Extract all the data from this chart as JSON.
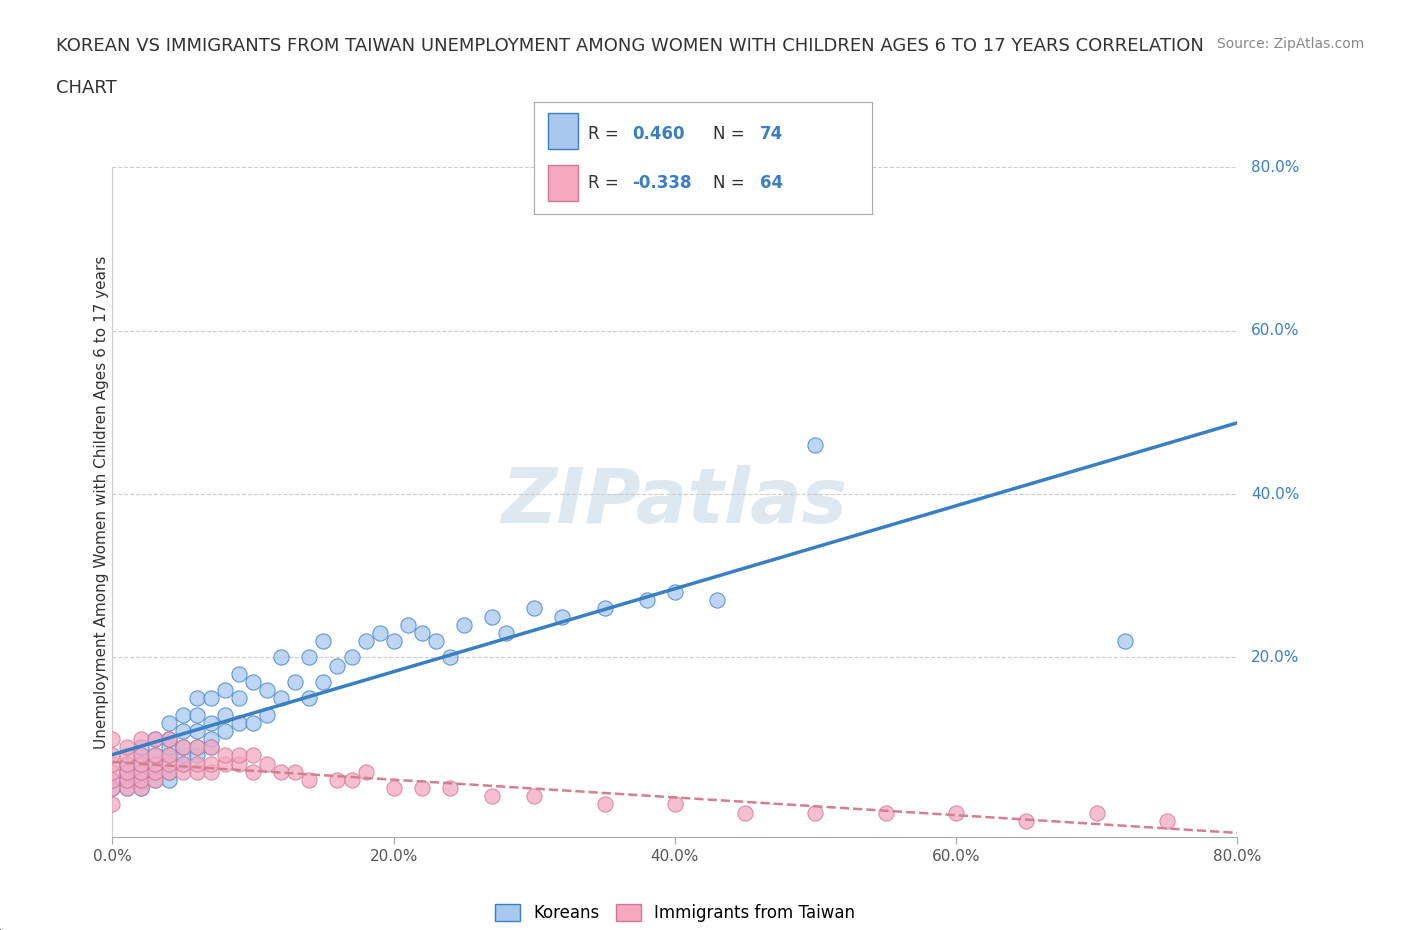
{
  "title_line1": "KOREAN VS IMMIGRANTS FROM TAIWAN UNEMPLOYMENT AMONG WOMEN WITH CHILDREN AGES 6 TO 17 YEARS CORRELATION",
  "title_line2": "CHART",
  "source": "Source: ZipAtlas.com",
  "ylabel": "Unemployment Among Women with Children Ages 6 to 17 years",
  "xlim": [
    0.0,
    0.8
  ],
  "ylim": [
    -0.02,
    0.8
  ],
  "xticks": [
    0.0,
    0.2,
    0.4,
    0.6,
    0.8
  ],
  "yticks": [
    0.0,
    0.2,
    0.4,
    0.6,
    0.8
  ],
  "xticklabels": [
    "0.0%",
    "20.0%",
    "40.0%",
    "60.0%",
    "80.0%"
  ],
  "yticklabels": [
    "20.0%",
    "40.0%",
    "60.0%",
    "80.0%"
  ],
  "korean_R": 0.46,
  "korean_N": 74,
  "taiwan_R": -0.338,
  "taiwan_N": 64,
  "korean_color": "#a8c8f0",
  "taiwan_color": "#f5a8c0",
  "korean_line_color": "#3a7fc1",
  "taiwan_line_color": "#d08090",
  "background_color": "#ffffff",
  "watermark_color": "#dde8f0",
  "grid_color": "#cccccc",
  "korean_x": [
    0.0,
    0.0,
    0.01,
    0.01,
    0.01,
    0.01,
    0.02,
    0.02,
    0.02,
    0.02,
    0.02,
    0.02,
    0.03,
    0.03,
    0.03,
    0.03,
    0.03,
    0.04,
    0.04,
    0.04,
    0.04,
    0.04,
    0.04,
    0.05,
    0.05,
    0.05,
    0.05,
    0.05,
    0.06,
    0.06,
    0.06,
    0.06,
    0.06,
    0.07,
    0.07,
    0.07,
    0.07,
    0.08,
    0.08,
    0.08,
    0.09,
    0.09,
    0.09,
    0.1,
    0.1,
    0.11,
    0.11,
    0.12,
    0.12,
    0.13,
    0.14,
    0.14,
    0.15,
    0.15,
    0.16,
    0.17,
    0.18,
    0.19,
    0.2,
    0.21,
    0.22,
    0.23,
    0.24,
    0.25,
    0.27,
    0.28,
    0.3,
    0.32,
    0.35,
    0.38,
    0.4,
    0.43,
    0.5,
    0.72
  ],
  "korean_y": [
    0.04,
    0.05,
    0.04,
    0.05,
    0.06,
    0.07,
    0.04,
    0.05,
    0.06,
    0.07,
    0.08,
    0.09,
    0.05,
    0.06,
    0.07,
    0.08,
    0.1,
    0.05,
    0.06,
    0.08,
    0.09,
    0.1,
    0.12,
    0.07,
    0.08,
    0.09,
    0.11,
    0.13,
    0.08,
    0.09,
    0.11,
    0.13,
    0.15,
    0.09,
    0.1,
    0.12,
    0.15,
    0.11,
    0.13,
    0.16,
    0.12,
    0.15,
    0.18,
    0.12,
    0.17,
    0.13,
    0.16,
    0.15,
    0.2,
    0.17,
    0.15,
    0.2,
    0.17,
    0.22,
    0.19,
    0.2,
    0.22,
    0.23,
    0.22,
    0.24,
    0.23,
    0.22,
    0.2,
    0.24,
    0.25,
    0.23,
    0.26,
    0.25,
    0.26,
    0.27,
    0.28,
    0.27,
    0.46,
    0.22
  ],
  "taiwan_x": [
    0.0,
    0.0,
    0.0,
    0.0,
    0.0,
    0.0,
    0.0,
    0.01,
    0.01,
    0.01,
    0.01,
    0.01,
    0.01,
    0.02,
    0.02,
    0.02,
    0.02,
    0.02,
    0.02,
    0.03,
    0.03,
    0.03,
    0.03,
    0.03,
    0.04,
    0.04,
    0.04,
    0.04,
    0.05,
    0.05,
    0.05,
    0.06,
    0.06,
    0.06,
    0.07,
    0.07,
    0.07,
    0.08,
    0.08,
    0.09,
    0.09,
    0.1,
    0.1,
    0.11,
    0.12,
    0.13,
    0.14,
    0.16,
    0.17,
    0.18,
    0.2,
    0.22,
    0.24,
    0.27,
    0.3,
    0.35,
    0.4,
    0.45,
    0.5,
    0.55,
    0.6,
    0.65,
    0.7,
    0.75
  ],
  "taiwan_y": [
    0.02,
    0.04,
    0.05,
    0.06,
    0.07,
    0.08,
    0.1,
    0.04,
    0.05,
    0.06,
    0.07,
    0.08,
    0.09,
    0.04,
    0.05,
    0.06,
    0.07,
    0.08,
    0.1,
    0.05,
    0.06,
    0.07,
    0.08,
    0.1,
    0.06,
    0.07,
    0.08,
    0.1,
    0.06,
    0.07,
    0.09,
    0.06,
    0.07,
    0.09,
    0.06,
    0.07,
    0.09,
    0.07,
    0.08,
    0.07,
    0.08,
    0.06,
    0.08,
    0.07,
    0.06,
    0.06,
    0.05,
    0.05,
    0.05,
    0.06,
    0.04,
    0.04,
    0.04,
    0.03,
    0.03,
    0.02,
    0.02,
    0.01,
    0.01,
    0.01,
    0.01,
    0.0,
    0.01,
    0.0
  ]
}
